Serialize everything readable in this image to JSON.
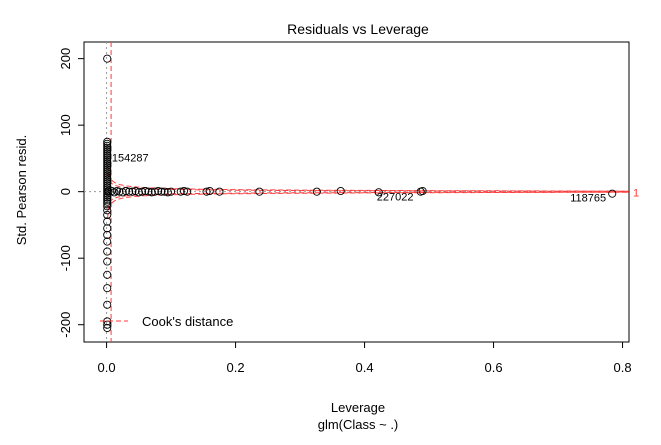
{
  "chart_data": {
    "type": "scatter",
    "title": "Residuals vs Leverage",
    "xlabel": "Leverage",
    "sublabel": "glm(Class ~ .)",
    "ylabel": "Std. Pearson resid.",
    "xlim": [
      -0.035,
      0.81
    ],
    "ylim": [
      -226,
      225
    ],
    "xticks": [
      0.0,
      0.2,
      0.4,
      0.6,
      0.8
    ],
    "xtick_labels": [
      "0.0",
      "0.2",
      "0.4",
      "0.6",
      "0.8"
    ],
    "yticks": [
      -200,
      -100,
      0,
      100,
      200
    ],
    "ytick_labels": [
      "-200",
      "-100",
      "0",
      "100",
      "200"
    ],
    "legend": {
      "label": "Cook's distance",
      "position": "bottom-left"
    },
    "cook_contour_label": "1",
    "cook_color": "#ff3b3b",
    "points_low_leverage_y": [
      200,
      75,
      72,
      69,
      66,
      63,
      60,
      57,
      54,
      51,
      48,
      45,
      42,
      39,
      36,
      33,
      30,
      27,
      24,
      21,
      18,
      15,
      12,
      9,
      6,
      3,
      0,
      -3,
      -6,
      -9,
      -12,
      -15,
      -18,
      -22,
      -28,
      -35,
      -45,
      -55,
      -65,
      -75,
      -90,
      -105,
      -125,
      -145,
      -170,
      -195,
      -200,
      -205
    ],
    "points_x": [
      0.003,
      0.008,
      0.012,
      0.016,
      0.02,
      0.025,
      0.03,
      0.035,
      0.04,
      0.045,
      0.05,
      0.055,
      0.06,
      0.065,
      0.07,
      0.075,
      0.08,
      0.085,
      0.09,
      0.095,
      0.1,
      0.115,
      0.12,
      0.125,
      0.155,
      0.16,
      0.175,
      0.237,
      0.326,
      0.363,
      0.422,
      0.487,
      0.49,
      0.784
    ],
    "points_y": [
      0,
      1,
      -1,
      1,
      0,
      -1,
      1,
      0,
      0,
      1,
      -1,
      0,
      1,
      0,
      -1,
      0,
      1,
      0,
      0,
      -1,
      0,
      0,
      1,
      0,
      0,
      1,
      0,
      0,
      0,
      1,
      -1,
      0,
      1,
      -3
    ],
    "labeled_points": [
      {
        "label": "154287",
        "x": 0.002,
        "y": 45
      },
      {
        "label": "227022",
        "x": 0.422,
        "y": -1
      },
      {
        "label": "118765",
        "x": 0.784,
        "y": -3
      }
    ],
    "grid": false
  }
}
